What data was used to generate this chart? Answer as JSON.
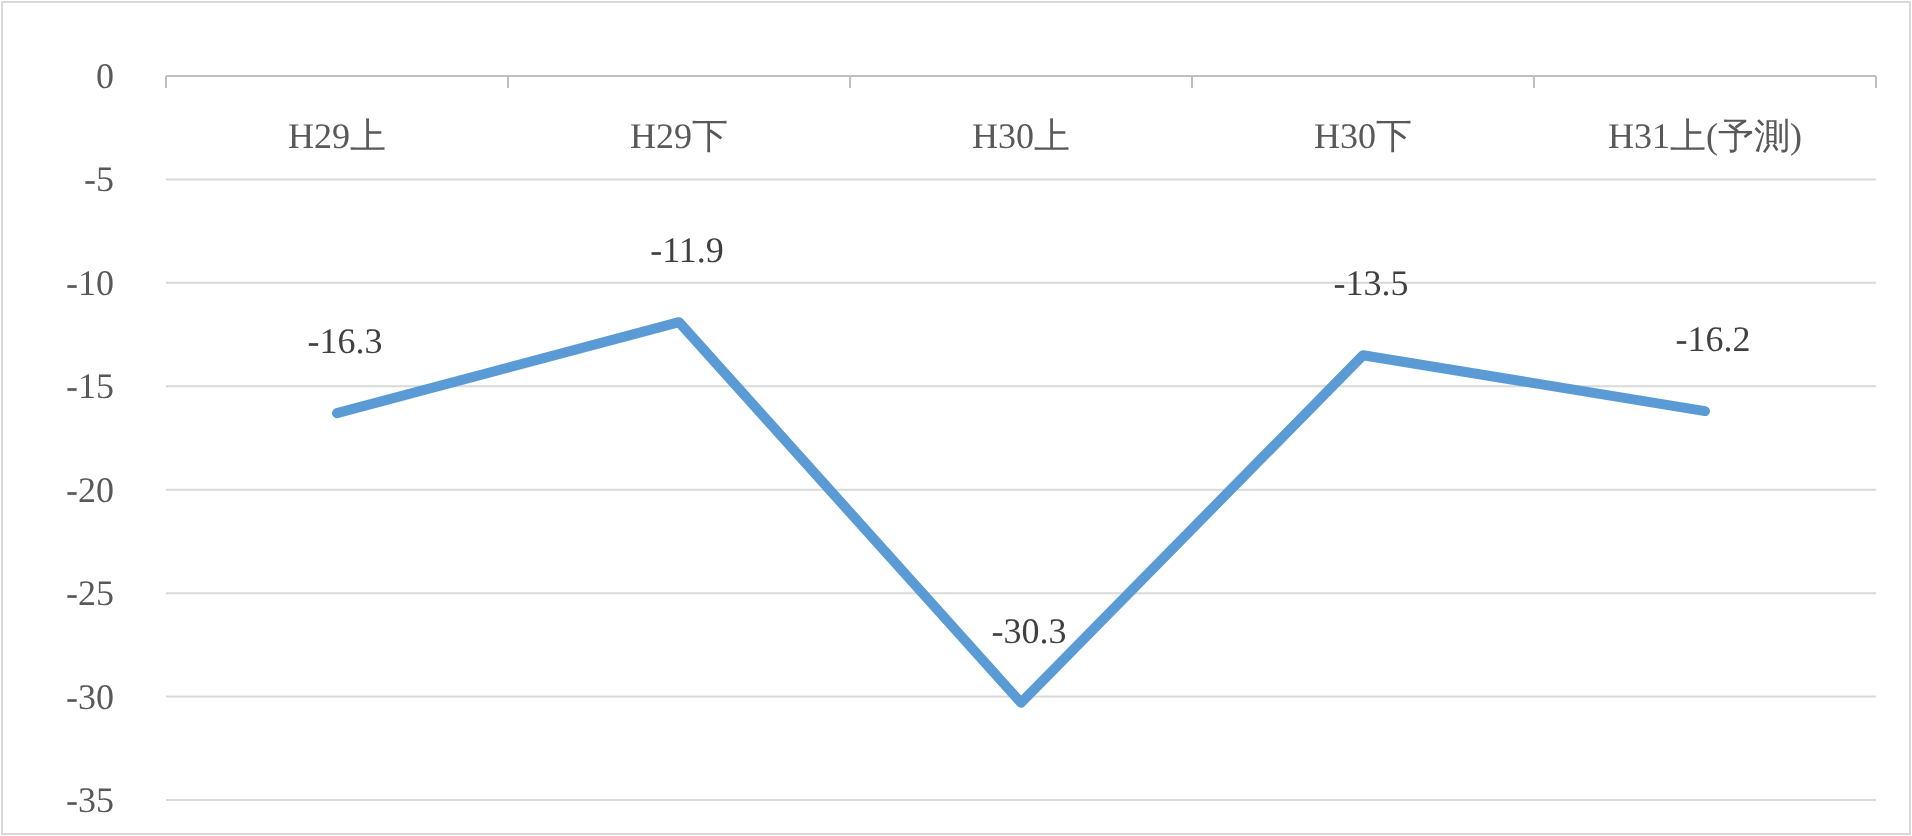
{
  "chart_data": {
    "type": "line",
    "categories": [
      "H29上",
      "H29下",
      "H30上",
      "H30下",
      "H31上(予測)"
    ],
    "series": [
      {
        "color": "#5b9bd5",
        "values": [
          -16.3,
          -11.9,
          -30.3,
          -13.5,
          -16.2
        ]
      }
    ],
    "ylim": [
      -35,
      0
    ],
    "yticks": [
      0,
      -5,
      -10,
      -15,
      -20,
      -25,
      -30,
      -35
    ],
    "grid": "y",
    "data_labels": true
  }
}
